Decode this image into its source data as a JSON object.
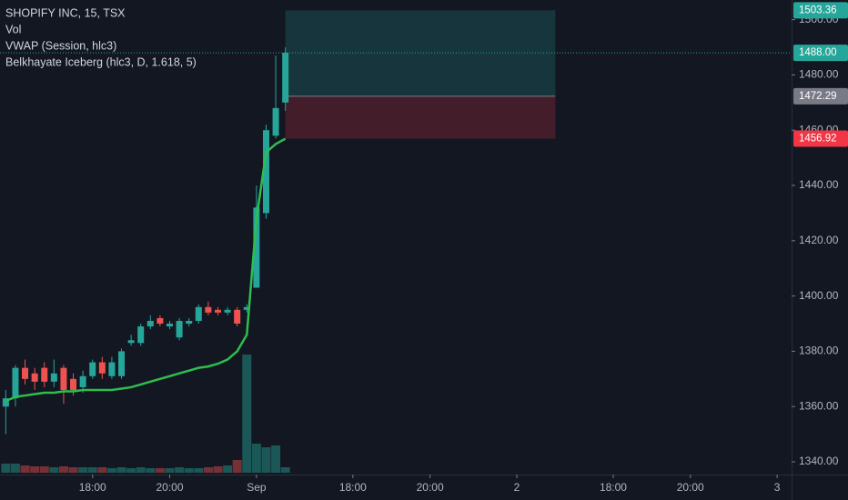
{
  "chart_data": {
    "type": "candlestick",
    "title": "SHOPIFY INC, 15, TSX",
    "volume_name": "Vol",
    "iceberg_name": "Belkhayate Iceberg (hlc3, D, 1.618, 5)",
    "x": [
      0,
      1,
      2,
      3,
      4,
      5,
      6,
      7,
      8,
      9,
      10,
      11,
      12,
      13,
      14,
      15,
      16,
      17,
      18,
      19,
      20,
      21,
      22,
      23,
      24,
      25,
      26,
      27,
      28,
      29
    ],
    "open": [
      1360,
      1363,
      1374,
      1372,
      1374,
      1369,
      1374,
      1370,
      1367,
      1371,
      1376,
      1371,
      1371,
      1383,
      1383,
      1389,
      1392,
      1389,
      1385,
      1390,
      1391,
      1396,
      1395,
      1394,
      1395,
      1395,
      1403,
      1430,
      1458,
      1470
    ],
    "high": [
      1366,
      1375,
      1377,
      1374,
      1376,
      1377,
      1375,
      1372,
      1373,
      1377,
      1378,
      1378,
      1381,
      1386,
      1390,
      1393,
      1393,
      1391,
      1392,
      1392,
      1397,
      1398,
      1396,
      1396,
      1396,
      1397,
      1440,
      1462,
      1487,
      1490
    ],
    "low": [
      1350,
      1360,
      1368,
      1366,
      1367,
      1367,
      1361,
      1364,
      1365,
      1370,
      1370,
      1370,
      1370,
      1382,
      1382,
      1388,
      1389,
      1388,
      1384,
      1389,
      1390,
      1393,
      1393,
      1393,
      1389,
      1394,
      1403,
      1428,
      1457,
      1467
    ],
    "close": [
      1363,
      1374,
      1370,
      1369,
      1369,
      1372,
      1366,
      1366,
      1371,
      1376,
      1372,
      1376,
      1380,
      1384,
      1389,
      1391,
      1390,
      1390,
      1391,
      1391,
      1396,
      1394,
      1394,
      1395,
      1390,
      1396,
      1432,
      1460,
      1468,
      1488
    ],
    "volume": [
      10,
      10,
      8,
      7,
      7,
      6,
      7,
      6,
      6,
      6,
      6,
      5,
      6,
      5,
      6,
      5,
      5,
      5,
      6,
      5,
      5,
      6,
      7,
      8,
      14,
      130,
      32,
      28,
      30,
      6
    ],
    "up_color": "#26a69a",
    "down_color": "#ef5350",
    "vwap": {
      "name": "VWAP (Session, hlc3)",
      "color": "#2ebd4e",
      "values": [
        1362,
        1363.5,
        1364,
        1364.5,
        1365,
        1365,
        1365.5,
        1365.5,
        1366,
        1366,
        1366,
        1366,
        1366.5,
        1367,
        1368,
        1369,
        1370,
        1371,
        1372,
        1373,
        1374,
        1374.5,
        1375.5,
        1377,
        1380,
        1386,
        1428,
        1452,
        1455,
        1456.92
      ]
    },
    "last_price": {
      "value": 1488,
      "label": "1488.00"
    },
    "position": {
      "x_start": 29,
      "x_end": 57,
      "target": 1503.36,
      "entry": 1472.29,
      "stop": 1456.92,
      "target_color": "#26a69a",
      "entry_color": "#787b86",
      "stop_color": "#f23645"
    },
    "xlim": [
      -0.6,
      81.5
    ],
    "xticks": [
      {
        "value": 9,
        "label": "18:00"
      },
      {
        "value": 17,
        "label": "20:00"
      },
      {
        "value": 26,
        "label": "Sep"
      },
      {
        "value": 36,
        "label": "18:00"
      },
      {
        "value": 44,
        "label": "20:00"
      },
      {
        "value": 53,
        "label": "2"
      },
      {
        "value": 63,
        "label": "18:00"
      },
      {
        "value": 71,
        "label": "20:00"
      },
      {
        "value": 80,
        "label": "3"
      }
    ],
    "ylim": [
      1335.4,
      1507.1
    ],
    "yticks": [
      {
        "value": 1340,
        "label": "1340.00"
      },
      {
        "value": 1360,
        "label": "1360.00"
      },
      {
        "value": 1380,
        "label": "1380.00"
      },
      {
        "value": 1400,
        "label": "1400.00"
      },
      {
        "value": 1420,
        "label": "1420.00"
      },
      {
        "value": 1440,
        "label": "1440.00"
      },
      {
        "value": 1460,
        "label": "1460.00"
      },
      {
        "value": 1480,
        "label": "1480.00"
      },
      {
        "value": 1500,
        "label": "1500.00"
      }
    ]
  }
}
